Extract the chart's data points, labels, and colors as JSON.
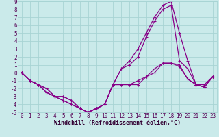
{
  "xlabel": "Windchill (Refroidissement éolien,°C)",
  "background_color": "#caeaea",
  "grid_color": "#a8d4d4",
  "line_color": "#880088",
  "x_hours": [
    0,
    1,
    2,
    3,
    4,
    5,
    6,
    7,
    8,
    9,
    10,
    11,
    12,
    13,
    14,
    15,
    16,
    17,
    18,
    19,
    20,
    21,
    22,
    23
  ],
  "series": [
    [
      0,
      -1,
      -1.5,
      -2,
      -3,
      -3,
      -3.5,
      -4.5,
      -5,
      -4.5,
      -4,
      -1.5,
      -1.5,
      -1.5,
      -1,
      -0.5,
      0,
      1.2,
      1.2,
      1,
      -0.8,
      -1.5,
      -1.5,
      -0.5
    ],
    [
      0,
      -1,
      -1.5,
      -2,
      -3,
      -3,
      -3.5,
      -4.5,
      -5,
      -4.5,
      -4,
      -1.5,
      -1.5,
      -1.5,
      -1.5,
      -0.5,
      0.5,
      1.2,
      1.2,
      0.8,
      -0.8,
      -1.5,
      -1.8,
      -0.5
    ],
    [
      0,
      -1,
      -1.5,
      -2.5,
      -3,
      -3.5,
      -4,
      -4.5,
      -5,
      -4.5,
      -4,
      -1.5,
      0.5,
      1.5,
      3,
      5,
      7,
      8.5,
      9,
      5,
      1.5,
      -1.5,
      -1.8,
      -0.5
    ],
    [
      0,
      -1,
      -1.5,
      -2.5,
      -3,
      -3.5,
      -4,
      -4.5,
      -5,
      -4.5,
      -4,
      -1.5,
      0.5,
      1,
      2,
      4.5,
      6.5,
      8,
      8.5,
      1.5,
      0.5,
      -1.5,
      -1.8,
      -0.5
    ]
  ],
  "ylim": [
    -5,
    9
  ],
  "yticks": [
    -5,
    -4,
    -3,
    -2,
    -1,
    0,
    1,
    2,
    3,
    4,
    5,
    6,
    7,
    8,
    9
  ],
  "xticks": [
    0,
    1,
    2,
    3,
    4,
    5,
    6,
    7,
    8,
    9,
    10,
    11,
    12,
    13,
    14,
    15,
    16,
    17,
    18,
    19,
    20,
    21,
    22,
    23
  ],
  "tick_fontsize": 5.5,
  "xlabel_fontsize": 6.0
}
